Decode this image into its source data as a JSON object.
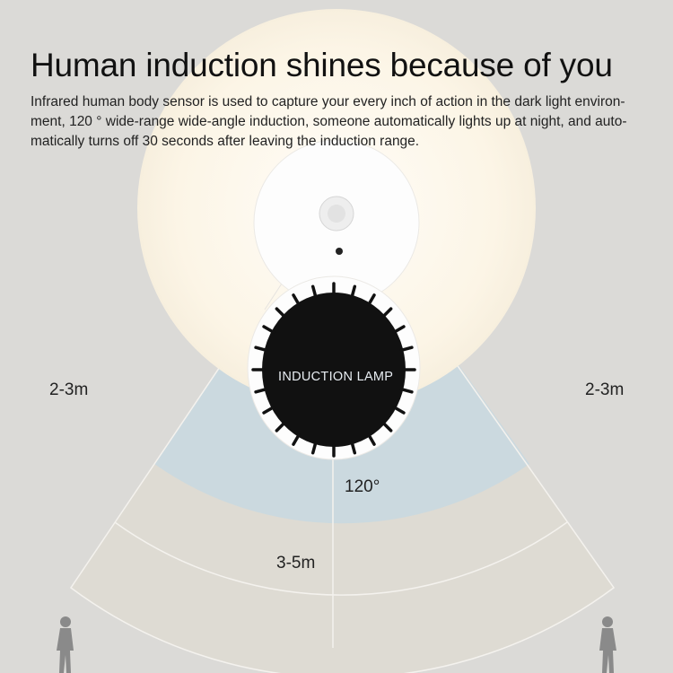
{
  "header": {
    "title": "Human induction shines because of you",
    "description": "Infrared human body sensor is used to capture your every inch of action in the dark light environ- ment, 120 ° wide-range wide-angle induction, someone automatically lights up at night, and auto- matically turns off 30 seconds after leaving the induction range."
  },
  "device": {
    "label": "INDUCTION LAMP"
  },
  "diagram": {
    "left_range": "2-3m",
    "right_range": "2-3m",
    "angle": "120°",
    "far_range": "3-5m"
  },
  "colors": {
    "background": "#dbdad7",
    "glow": "#fcf6e8",
    "near_zone": "#cbd9df",
    "far_zone": "#dedbd3",
    "lamp_face": "#111111"
  }
}
